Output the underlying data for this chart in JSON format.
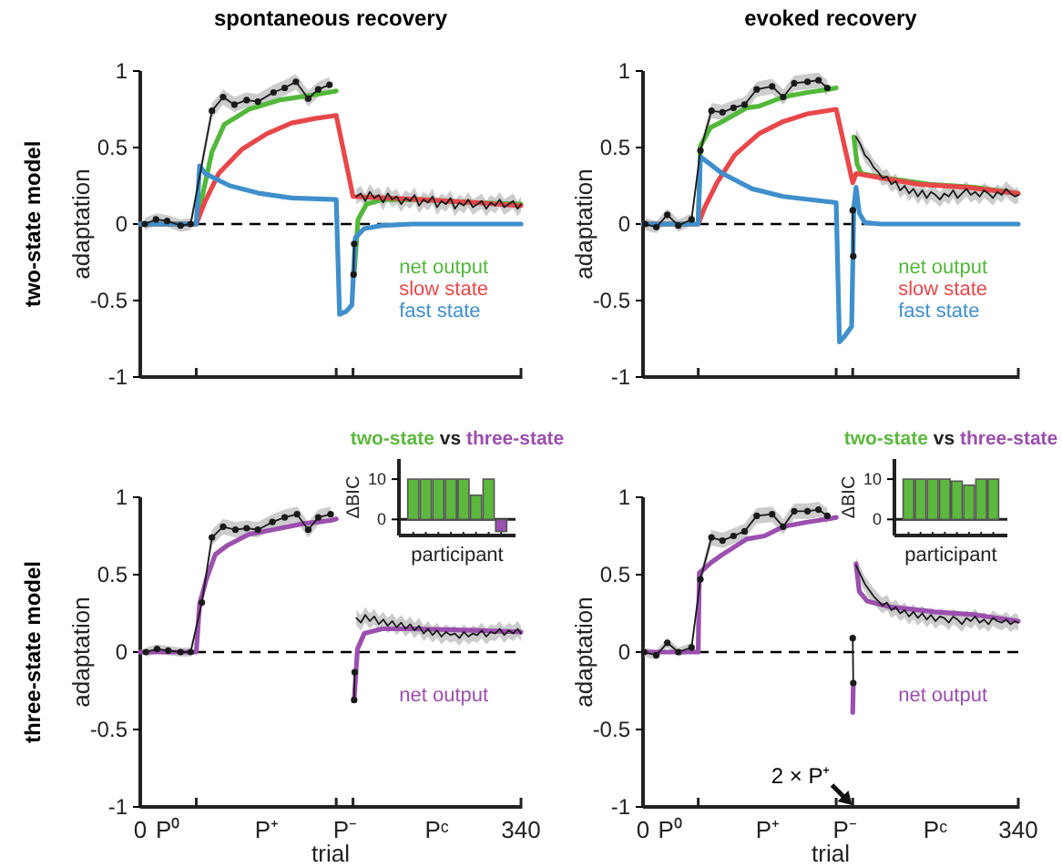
{
  "chart_data": [
    {
      "type": "line",
      "title": "spontaneous recovery",
      "ylabel": "adaptation",
      "annotations": [
        "two-state model"
      ],
      "xlim": [
        0,
        340
      ],
      "ylim": [
        -1,
        1
      ],
      "xticks": [
        50,
        175,
        190,
        340
      ],
      "yticks": [
        -1,
        -0.5,
        0,
        0.5,
        1
      ],
      "tick_labels": "y",
      "legend": "bottom right",
      "line_style": "solid",
      "ref_lines": [
        {
          "axis": "y",
          "value": 0,
          "color": "#000000",
          "line_style": "dashed"
        }
      ],
      "series": [
        {
          "name": "net output",
          "color": "#52b83a",
          "x": [
            0,
            50,
            58,
            64,
            75,
            97,
            124,
            151,
            168,
            175,
            180,
            191,
            194.5,
            202,
            216,
            250,
            300,
            340
          ],
          "values": [
            0,
            0,
            0.27,
            0.47,
            0.65,
            0.75,
            0.81,
            0.84,
            0.86,
            0.87,
            null,
            -0.33,
            0.03,
            0.13,
            0.16,
            0.16,
            0.14,
            0.13
          ]
        },
        {
          "name": "slow state",
          "color": "#e8474a",
          "x": [
            0,
            50,
            58,
            70,
            91,
            113,
            135,
            156,
            175,
            190,
            250,
            300,
            340
          ],
          "values": [
            0,
            0,
            0.15,
            0.33,
            0.49,
            0.59,
            0.66,
            0.69,
            0.71,
            0.18,
            0.16,
            0.14,
            0.12
          ]
        },
        {
          "name": "fast state",
          "color": "#3f8fcc",
          "x": [
            0,
            50,
            53,
            58,
            80,
            107,
            135,
            175,
            178,
            184,
            189,
            192,
            200,
            216,
            243,
            340
          ],
          "values": [
            0,
            0,
            0.38,
            0.33,
            0.25,
            0.2,
            0.17,
            0.16,
            -0.59,
            -0.57,
            -0.53,
            -0.09,
            -0.03,
            -0.01,
            0,
            0
          ]
        },
        {
          "color": "#1a1a1a",
          "marker": "none",
          "x": [
            193,
            197,
            201,
            205,
            209,
            213,
            217,
            221,
            225,
            229,
            233,
            237,
            241,
            245,
            249,
            253,
            257,
            261,
            265,
            269,
            273,
            277,
            281,
            285,
            289,
            293,
            297,
            301,
            305,
            309,
            313,
            317,
            321,
            325,
            329,
            333,
            337,
            340
          ],
          "values": [
            0.18,
            0.2,
            0.15,
            0.21,
            0.17,
            0.19,
            0.14,
            0.2,
            0.16,
            0.18,
            0.13,
            0.17,
            0.15,
            0.19,
            0.12,
            0.16,
            0.14,
            0.18,
            0.11,
            0.15,
            0.13,
            0.17,
            0.1,
            0.14,
            0.12,
            0.16,
            0.11,
            0.13,
            0.15,
            0.1,
            0.14,
            0.12,
            0.16,
            0.11,
            0.13,
            0.15,
            0.1,
            0.13
          ],
          "lower": [
            0.13,
            0.15,
            0.1,
            0.16,
            0.12,
            0.14,
            0.09,
            0.15,
            0.11,
            0.13,
            0.08,
            0.12,
            0.1,
            0.14,
            0.07,
            0.11,
            0.09,
            0.13,
            0.06,
            0.1,
            0.08,
            0.12,
            0.05,
            0.09,
            0.07,
            0.11,
            0.06,
            0.08,
            0.1,
            0.05,
            0.09,
            0.07,
            0.11,
            0.06,
            0.08,
            0.1,
            0.05,
            0.08
          ],
          "upper": [
            0.23,
            0.25,
            0.2,
            0.26,
            0.22,
            0.24,
            0.19,
            0.25,
            0.21,
            0.23,
            0.18,
            0.22,
            0.2,
            0.24,
            0.17,
            0.21,
            0.19,
            0.23,
            0.16,
            0.2,
            0.18,
            0.22,
            0.15,
            0.19,
            0.17,
            0.21,
            0.16,
            0.18,
            0.2,
            0.15,
            0.19,
            0.17,
            0.21,
            0.16,
            0.18,
            0.2,
            0.15,
            0.18
          ]
        },
        {
          "color": "#1a1a1a",
          "marker": "circle",
          "x": [
            4,
            14,
            24,
            36,
            45,
            64,
            74,
            84,
            95,
            105,
            119,
            129,
            139,
            150,
            159,
            169,
            180,
            190.5,
            191
          ],
          "values": [
            0,
            0.03,
            0.02,
            -0.01,
            0,
            0.74,
            0.83,
            0.78,
            0.81,
            0.8,
            0.86,
            0.89,
            0.93,
            0.82,
            0.88,
            0.91,
            null,
            -0.33,
            -0.13
          ],
          "lower": [
            -0.04,
            -0.01,
            -0.02,
            -0.05,
            -0.04,
            0.69,
            0.78,
            0.73,
            0.76,
            0.75,
            0.81,
            0.84,
            0.88,
            0.77,
            0.83,
            0.86,
            null,
            null,
            null
          ],
          "upper": [
            0.04,
            0.07,
            0.06,
            0.03,
            0.04,
            0.79,
            0.88,
            0.83,
            0.86,
            0.85,
            0.91,
            0.94,
            0.98,
            0.87,
            0.93,
            0.96,
            null,
            null,
            null
          ]
        }
      ]
    },
    {
      "type": "line",
      "title": "evoked recovery",
      "ylabel": "adaptation",
      "xlim": [
        0,
        340
      ],
      "ylim": [
        -1,
        1
      ],
      "xticks": [
        50,
        175,
        190,
        340
      ],
      "yticks": [
        -1,
        -0.5,
        0,
        0.5,
        1
      ],
      "tick_labels": "y",
      "legend": "bottom right",
      "line_style": "solid",
      "ref_lines": [
        {
          "axis": "y",
          "value": 0,
          "color": "#000000",
          "line_style": "dashed"
        }
      ],
      "series": [
        {
          "name": "net output",
          "color": "#52b83a",
          "x": [
            0,
            50,
            52,
            61,
            72,
            94,
            105,
            127,
            149,
            168,
            175,
            180,
            191,
            194,
            198,
            220,
            260,
            300,
            340
          ],
          "values": [
            0,
            0,
            0.51,
            0.63,
            0.67,
            0.76,
            0.77,
            0.83,
            0.86,
            0.88,
            0.89,
            null,
            0.57,
            0.39,
            0.33,
            0.3,
            0.26,
            0.24,
            0.2
          ]
        },
        {
          "name": "slow state",
          "color": "#e8474a",
          "x": [
            0,
            50,
            56,
            67,
            83,
            105,
            127,
            149,
            175,
            190,
            193,
            217,
            250,
            293,
            340
          ],
          "values": [
            0,
            0,
            0.11,
            0.27,
            0.45,
            0.59,
            0.67,
            0.72,
            0.75,
            0.27,
            0.33,
            0.3,
            0.26,
            0.24,
            0.2
          ]
        },
        {
          "name": "fast state",
          "color": "#3f8fcc",
          "x": [
            0,
            50,
            52,
            72,
            99,
            127,
            175,
            178,
            183,
            189,
            191,
            193,
            196,
            201,
            215,
            340
          ],
          "values": [
            0,
            0,
            0.44,
            0.33,
            0.23,
            0.18,
            0.14,
            -0.77,
            -0.73,
            -0.67,
            0.11,
            0.24,
            0.07,
            0.01,
            0,
            0
          ]
        },
        {
          "color": "#1a1a1a",
          "marker": "none",
          "x": [
            193,
            197,
            201,
            205,
            209,
            213,
            217,
            221,
            225,
            229,
            233,
            237,
            241,
            245,
            249,
            253,
            257,
            261,
            265,
            269,
            273,
            277,
            281,
            285,
            289,
            293,
            297,
            301,
            305,
            309,
            313,
            317,
            321,
            325,
            329,
            333,
            337,
            340
          ],
          "values": [
            0.57,
            0.52,
            0.45,
            0.42,
            0.37,
            0.34,
            0.3,
            0.31,
            0.26,
            0.28,
            0.22,
            0.25,
            0.2,
            0.23,
            0.18,
            0.22,
            0.17,
            0.21,
            0.19,
            0.16,
            0.2,
            0.18,
            0.22,
            0.17,
            0.2,
            0.23,
            0.19,
            0.21,
            0.18,
            0.22,
            0.2,
            0.17,
            0.21,
            0.19,
            0.23,
            0.2,
            0.18,
            0.19
          ],
          "lower": [
            0.52,
            0.47,
            0.4,
            0.37,
            0.32,
            0.29,
            0.25,
            0.26,
            0.21,
            0.23,
            0.17,
            0.2,
            0.15,
            0.18,
            0.13,
            0.17,
            0.12,
            0.16,
            0.14,
            0.11,
            0.15,
            0.13,
            0.17,
            0.12,
            0.15,
            0.18,
            0.14,
            0.16,
            0.13,
            0.17,
            0.15,
            0.12,
            0.16,
            0.14,
            0.18,
            0.15,
            0.13,
            0.14
          ],
          "upper": [
            0.62,
            0.57,
            0.5,
            0.47,
            0.42,
            0.39,
            0.35,
            0.36,
            0.31,
            0.33,
            0.27,
            0.3,
            0.25,
            0.28,
            0.23,
            0.27,
            0.22,
            0.26,
            0.24,
            0.21,
            0.25,
            0.23,
            0.27,
            0.22,
            0.25,
            0.28,
            0.24,
            0.26,
            0.23,
            0.27,
            0.25,
            0.22,
            0.26,
            0.24,
            0.28,
            0.25,
            0.23,
            0.24
          ]
        },
        {
          "color": "#1a1a1a",
          "marker": "circle",
          "x": [
            2,
            12,
            22,
            32,
            44,
            52,
            62,
            72,
            82,
            92,
            103,
            117,
            127,
            137,
            149,
            159,
            167,
            180,
            190,
            190.5
          ],
          "values": [
            0,
            -0.02,
            0.06,
            -0.01,
            0.03,
            0.48,
            0.74,
            0.73,
            0.76,
            0.78,
            0.88,
            0.9,
            0.83,
            0.92,
            0.93,
            0.94,
            0.89,
            null,
            0.09,
            -0.21
          ],
          "lower": [
            -0.04,
            -0.06,
            0.02,
            -0.05,
            -0.01,
            0.44,
            0.69,
            0.68,
            0.71,
            0.73,
            0.83,
            0.85,
            0.78,
            0.87,
            0.88,
            0.89,
            0.84,
            null,
            null,
            null
          ],
          "upper": [
            0.04,
            0.02,
            0.1,
            0.03,
            0.07,
            0.52,
            0.79,
            0.78,
            0.81,
            0.83,
            0.93,
            0.95,
            0.88,
            0.97,
            0.98,
            0.99,
            0.94,
            null,
            null,
            null
          ]
        }
      ]
    },
    {
      "type": "line",
      "xlabel": "trial",
      "ylabel": "adaptation",
      "annotations": [
        "three-state model"
      ],
      "xlim": [
        0,
        340
      ],
      "ylim": [
        -1,
        1
      ],
      "xticks": [
        {
          "value": 0,
          "label": "0"
        },
        {
          "value": 25,
          "label": "P⁰"
        },
        {
          "value": 50,
          "label": null
        },
        {
          "value": 112.5,
          "label": "P⁺"
        },
        {
          "value": 175,
          "label": null
        },
        {
          "value": 182.5,
          "label": "P⁻"
        },
        {
          "value": 190,
          "label": null
        },
        {
          "value": 265,
          "label": "Pᶜ"
        },
        340
      ],
      "yticks": [
        -1,
        -0.5,
        0,
        0.5,
        1
      ],
      "legend": "bottom right",
      "line_style": "solid",
      "ref_lines": [
        {
          "axis": "y",
          "value": 0,
          "color": "#000000",
          "line_style": "dashed"
        }
      ],
      "series": [
        {
          "name": "net output",
          "color": "#9b4fae",
          "x": [
            0,
            50,
            53,
            59,
            67,
            78,
            97,
            118,
            146,
            170,
            175,
            180,
            191,
            194,
            200,
            216,
            243,
            297,
            340
          ],
          "values": [
            0,
            0,
            0.31,
            0.47,
            0.63,
            0.69,
            0.76,
            0.79,
            0.83,
            0.85,
            0.86,
            null,
            -0.31,
            0.02,
            0.12,
            0.15,
            0.15,
            0.14,
            0.13
          ]
        },
        {
          "color": "#1a1a1a",
          "marker": "none",
          "x": [
            193,
            197,
            201,
            205,
            209,
            213,
            217,
            221,
            225,
            229,
            233,
            237,
            241,
            245,
            249,
            253,
            257,
            261,
            265,
            269,
            273,
            277,
            281,
            285,
            289,
            293,
            297,
            301,
            305,
            309,
            313,
            317,
            321,
            325,
            329,
            333,
            337,
            340
          ],
          "values": [
            0.22,
            0.19,
            0.24,
            0.2,
            0.23,
            0.18,
            0.21,
            0.17,
            0.2,
            0.16,
            0.19,
            0.15,
            0.18,
            0.14,
            0.17,
            0.12,
            0.15,
            0.11,
            0.14,
            0.1,
            0.13,
            0.11,
            0.12,
            0.09,
            0.13,
            0.1,
            0.12,
            0.11,
            0.14,
            0.1,
            0.13,
            0.12,
            0.15,
            0.11,
            0.14,
            0.12,
            0.15,
            0.12
          ],
          "lower": [
            0.17,
            0.14,
            0.19,
            0.15,
            0.18,
            0.13,
            0.16,
            0.12,
            0.15,
            0.11,
            0.14,
            0.1,
            0.13,
            0.09,
            0.12,
            0.07,
            0.1,
            0.06,
            0.09,
            0.05,
            0.08,
            0.06,
            0.07,
            0.04,
            0.08,
            0.05,
            0.07,
            0.06,
            0.09,
            0.05,
            0.08,
            0.07,
            0.1,
            0.06,
            0.09,
            0.07,
            0.1,
            0.07
          ],
          "upper": [
            0.27,
            0.24,
            0.29,
            0.25,
            0.28,
            0.23,
            0.26,
            0.22,
            0.25,
            0.21,
            0.24,
            0.2,
            0.23,
            0.19,
            0.22,
            0.17,
            0.2,
            0.16,
            0.19,
            0.15,
            0.18,
            0.16,
            0.17,
            0.14,
            0.18,
            0.15,
            0.17,
            0.16,
            0.19,
            0.15,
            0.18,
            0.17,
            0.2,
            0.16,
            0.19,
            0.17,
            0.2,
            0.17
          ]
        },
        {
          "color": "#1a1a1a",
          "marker": "circle",
          "x": [
            5,
            15,
            25,
            36,
            45,
            55,
            64,
            74,
            85,
            95,
            105,
            118,
            129,
            140,
            150,
            159,
            170,
            180,
            191,
            191.5
          ],
          "values": [
            0,
            0.02,
            0.01,
            0,
            0,
            0.32,
            0.74,
            0.81,
            0.79,
            0.8,
            0.79,
            0.84,
            0.87,
            0.89,
            0.79,
            0.87,
            0.89,
            null,
            -0.31,
            -0.13
          ],
          "lower": [
            -0.03,
            -0.01,
            -0.02,
            -0.03,
            -0.03,
            0.29,
            0.69,
            0.76,
            0.74,
            0.75,
            0.74,
            0.79,
            0.82,
            0.84,
            0.74,
            0.82,
            0.84,
            null,
            null,
            null
          ],
          "upper": [
            0.03,
            0.05,
            0.04,
            0.03,
            0.03,
            0.35,
            0.79,
            0.86,
            0.84,
            0.85,
            0.84,
            0.89,
            0.92,
            0.94,
            0.84,
            0.92,
            0.94,
            null,
            null,
            null
          ]
        }
      ]
    },
    {
      "type": "line",
      "xlabel": "trial",
      "ylabel": "adaptation",
      "annotations": [
        "2 × P⁺"
      ],
      "xlim": [
        0,
        340
      ],
      "ylim": [
        -1,
        1
      ],
      "xticks": [
        {
          "value": 0,
          "label": "0"
        },
        {
          "value": 25,
          "label": "P⁰"
        },
        {
          "value": 50,
          "label": null
        },
        {
          "value": 112.5,
          "label": "P⁺"
        },
        {
          "value": 175,
          "label": null
        },
        {
          "value": 182.5,
          "label": "P⁻"
        },
        {
          "value": 190,
          "label": null
        },
        {
          "value": 265,
          "label": "Pᶜ"
        },
        340
      ],
      "yticks": [
        -1,
        -0.5,
        0,
        0.5,
        1
      ],
      "legend": "bottom right",
      "line_style": "solid",
      "ref_lines": [
        {
          "axis": "y",
          "value": 0,
          "color": "#000000",
          "line_style": "dashed"
        }
      ],
      "series": [
        {
          "name": "net output",
          "color": "#9b4fae",
          "x": [
            0,
            50,
            51,
            62,
            72,
            94,
            110,
            127,
            149,
            168,
            175,
            180,
            190,
            190.5,
            191.5,
            193,
            196,
            203,
            225,
            264,
            302,
            340
          ],
          "values": [
            0,
            0,
            0.51,
            0.58,
            0.63,
            0.73,
            0.75,
            0.81,
            0.84,
            0.86,
            0.87,
            null,
            -0.39,
            -0.22,
            null,
            0.57,
            0.39,
            0.33,
            0.29,
            0.26,
            0.24,
            0.2
          ]
        },
        {
          "color": "#1a1a1a",
          "marker": "none",
          "x": [
            193,
            197,
            201,
            205,
            209,
            213,
            217,
            221,
            225,
            229,
            233,
            237,
            241,
            245,
            249,
            253,
            257,
            261,
            265,
            269,
            273,
            277,
            281,
            285,
            289,
            293,
            297,
            301,
            305,
            309,
            313,
            317,
            321,
            325,
            329,
            333,
            337,
            340
          ],
          "values": [
            0.56,
            0.5,
            0.44,
            0.4,
            0.36,
            0.33,
            0.3,
            0.32,
            0.27,
            0.29,
            0.25,
            0.27,
            0.23,
            0.26,
            0.22,
            0.25,
            0.21,
            0.24,
            0.2,
            0.23,
            0.22,
            0.19,
            0.23,
            0.21,
            0.18,
            0.22,
            0.2,
            0.23,
            0.19,
            0.21,
            0.18,
            0.22,
            0.2,
            0.19,
            0.21,
            0.18,
            0.2,
            0.19
          ],
          "lower": [
            0.51,
            0.45,
            0.39,
            0.35,
            0.31,
            0.28,
            0.25,
            0.27,
            0.22,
            0.24,
            0.2,
            0.22,
            0.18,
            0.21,
            0.17,
            0.2,
            0.16,
            0.19,
            0.15,
            0.18,
            0.17,
            0.14,
            0.18,
            0.16,
            0.13,
            0.17,
            0.15,
            0.18,
            0.14,
            0.16,
            0.13,
            0.17,
            0.15,
            0.14,
            0.16,
            0.13,
            0.15,
            0.14
          ],
          "upper": [
            0.61,
            0.55,
            0.49,
            0.45,
            0.41,
            0.38,
            0.35,
            0.37,
            0.32,
            0.34,
            0.3,
            0.32,
            0.28,
            0.31,
            0.27,
            0.3,
            0.26,
            0.29,
            0.25,
            0.28,
            0.27,
            0.24,
            0.28,
            0.26,
            0.23,
            0.27,
            0.25,
            0.28,
            0.24,
            0.26,
            0.23,
            0.27,
            0.25,
            0.24,
            0.26,
            0.23,
            0.25,
            0.24
          ]
        },
        {
          "color": "#1a1a1a",
          "marker": "circle",
          "x": [
            1,
            12,
            22,
            32,
            44,
            52,
            62,
            72,
            82,
            92,
            103,
            117,
            127,
            137,
            149,
            159,
            167,
            180,
            190,
            190.5
          ],
          "values": [
            0,
            -0.02,
            0.06,
            0,
            0.03,
            0.47,
            0.74,
            0.72,
            0.75,
            0.78,
            0.88,
            0.89,
            0.81,
            0.91,
            0.91,
            0.92,
            0.88,
            null,
            0.09,
            -0.2
          ],
          "lower": [
            -0.03,
            -0.05,
            0.03,
            -0.03,
            0,
            0.43,
            0.69,
            0.67,
            0.7,
            0.73,
            0.83,
            0.84,
            0.76,
            0.86,
            0.86,
            0.87,
            0.83,
            null,
            null,
            null
          ],
          "upper": [
            0.03,
            0.01,
            0.09,
            0.03,
            0.06,
            0.51,
            0.79,
            0.77,
            0.8,
            0.83,
            0.93,
            0.94,
            0.86,
            0.96,
            0.96,
            0.97,
            0.93,
            null,
            null,
            null
          ]
        }
      ]
    },
    {
      "type": "bar",
      "title": "vs",
      "xlabel": "participant",
      "ylabel": "ΔBIC",
      "stacked": true,
      "legend": "top",
      "categories": [
        null,
        null,
        null,
        null,
        null,
        null,
        null,
        null
      ],
      "ylim": [
        -4,
        15
      ],
      "yticks": [
        0,
        10
      ],
      "series": [
        {
          "name": "two-state",
          "color": "#5cb83e",
          "values": [
            10,
            10,
            10,
            10,
            10,
            6,
            10,
            null
          ]
        },
        {
          "name": "three-state",
          "color": "#9b4fae",
          "values": [
            null,
            null,
            null,
            null,
            null,
            null,
            null,
            -3
          ]
        }
      ]
    },
    {
      "type": "bar",
      "title": "vs",
      "xlabel": "participant",
      "ylabel": "ΔBIC",
      "stacked": true,
      "legend": "top",
      "categories": [
        null,
        null,
        null,
        null,
        null,
        null,
        null,
        null
      ],
      "ylim": [
        -4,
        15
      ],
      "yticks": [
        0,
        10
      ],
      "series": [
        {
          "name": "two-state",
          "color": "#5cb83e",
          "values": [
            10,
            10,
            10,
            10,
            9.5,
            8.5,
            10,
            10
          ]
        },
        {
          "name": "three-state",
          "color": "#9b4fae",
          "values": [
            null,
            null,
            null,
            null,
            null,
            null,
            null,
            null
          ]
        }
      ]
    }
  ]
}
